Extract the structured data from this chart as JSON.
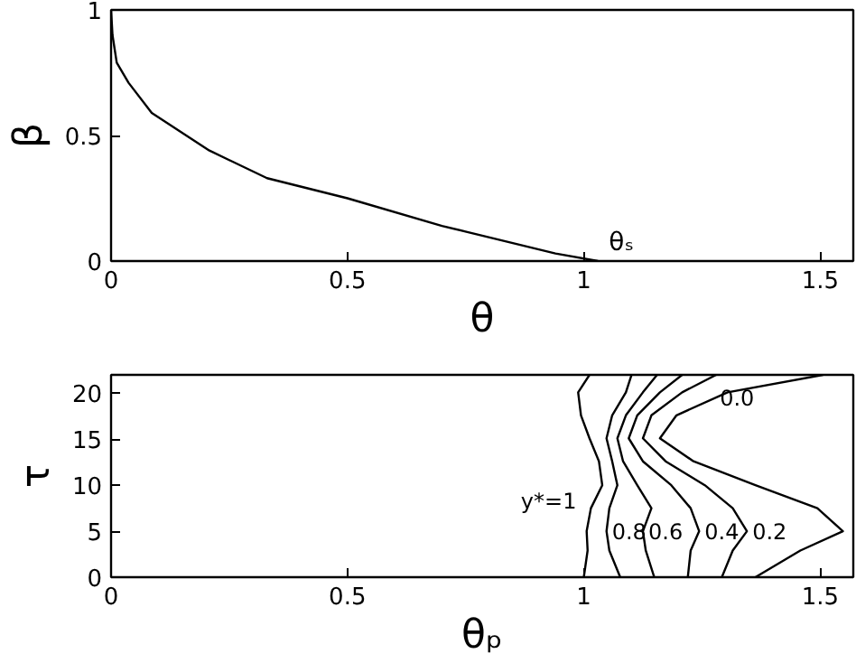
{
  "chart_data": [
    {
      "type": "line",
      "xlabel": "θ",
      "ylabel": "β",
      "xlim": [
        0,
        1.57
      ],
      "ylim": [
        0,
        1
      ],
      "xticks": [
        0,
        0.5,
        1,
        1.5
      ],
      "yticks": [
        0,
        0.5,
        1
      ],
      "grid": false,
      "legend": false,
      "series": [
        {
          "color": "#000000",
          "x": [
            0,
            0.003,
            0.012,
            0.037,
            0.086,
            0.208,
            0.33,
            0.5,
            0.7,
            0.94,
            1.03
          ],
          "values": [
            1,
            0.9,
            0.79,
            0.71,
            0.59,
            0.44,
            0.33,
            0.25,
            0.14,
            0.03,
            0
          ]
        }
      ],
      "annotations": [
        "θₛ"
      ]
    },
    {
      "type": "line",
      "xlabel": "θₚ",
      "ylabel": "τ",
      "xlim": [
        0,
        1.57
      ],
      "ylim": [
        0,
        22
      ],
      "xticks": [
        0,
        0.5,
        1,
        1.5
      ],
      "yticks": [
        0,
        5,
        10,
        15,
        20
      ],
      "grid": false,
      "legend": false,
      "series": [
        {
          "name": "y*=1",
          "color": "#000000",
          "x": [
            1.0,
            1.008,
            1.006,
            1.015,
            1.039,
            1.032,
            1.012,
            0.994,
            0.988,
            1.012
          ],
          "values": [
            0,
            2.9,
            5,
            7.5,
            10,
            12.6,
            15.1,
            17.6,
            20.1,
            22
          ]
        },
        {
          "name": "0.8",
          "color": "#000000",
          "x": [
            1.077,
            1.054,
            1.048,
            1.054,
            1.071,
            1.06,
            1.048,
            1.06,
            1.089,
            1.101
          ],
          "values": [
            0,
            2.9,
            5,
            7.5,
            10,
            12.6,
            15.1,
            17.6,
            20.1,
            22
          ]
        },
        {
          "name": "0.6",
          "color": "#000000",
          "x": [
            1.149,
            1.131,
            1.125,
            1.143,
            1.113,
            1.083,
            1.071,
            1.089,
            1.125,
            1.155
          ],
          "values": [
            0,
            2.9,
            5,
            7.5,
            10,
            12.6,
            15.1,
            17.6,
            20.1,
            22
          ]
        },
        {
          "name": "0.4",
          "color": "#000000",
          "x": [
            1.22,
            1.226,
            1.244,
            1.226,
            1.185,
            1.125,
            1.095,
            1.113,
            1.161,
            1.208
          ],
          "values": [
            0,
            2.9,
            5,
            7.5,
            10,
            12.6,
            15.1,
            17.6,
            20.1,
            22
          ]
        },
        {
          "name": "0.2",
          "color": "#000000",
          "x": [
            1.292,
            1.315,
            1.345,
            1.315,
            1.256,
            1.173,
            1.125,
            1.143,
            1.208,
            1.28
          ],
          "values": [
            0,
            2.9,
            5,
            7.5,
            10,
            12.6,
            15.1,
            17.6,
            20.1,
            22
          ]
        },
        {
          "name": "0.0",
          "color": "#000000",
          "x": [
            1.363,
            1.458,
            1.548,
            1.494,
            1.363,
            1.232,
            1.161,
            1.196,
            1.304,
            1.506
          ],
          "values": [
            0,
            2.9,
            5,
            7.5,
            10,
            12.6,
            15.1,
            17.6,
            20.1,
            22
          ]
        }
      ]
    }
  ]
}
